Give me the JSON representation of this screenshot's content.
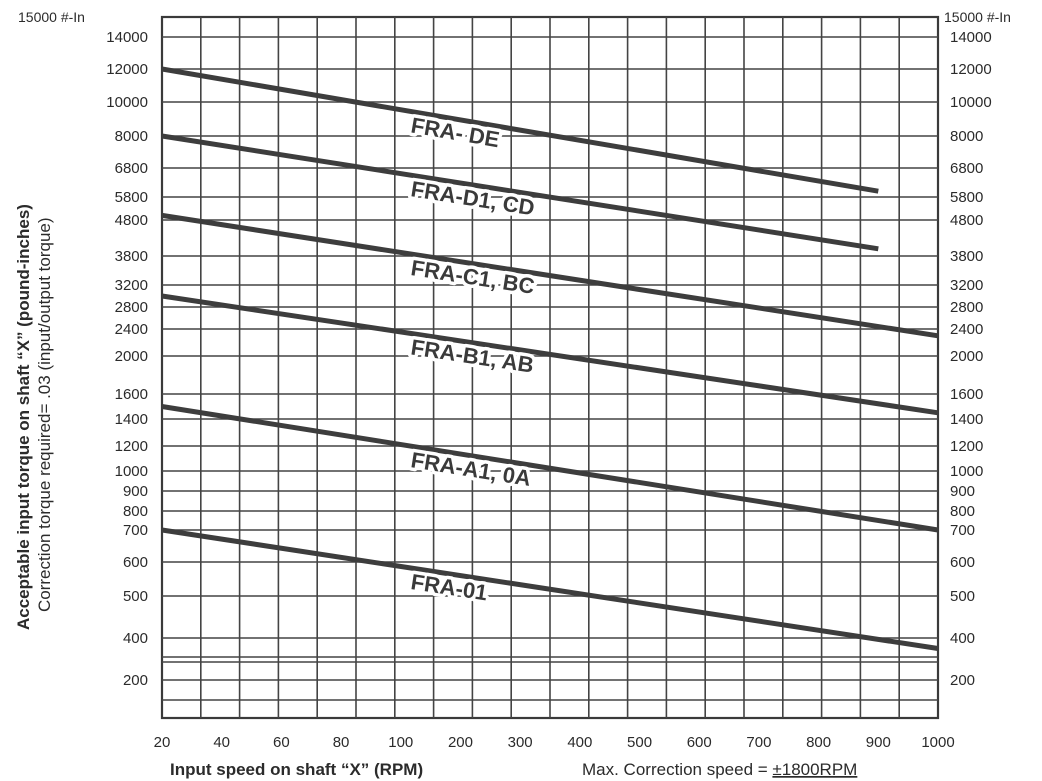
{
  "chart_data": {
    "type": "line",
    "xlabel": "Input speed on shaft “X”  (RPM)",
    "note": "Max. Correction speed = ",
    "note_value": "±1800RPM",
    "ylabel": "Acceptable input torque on shaft “X” (pound-inches)",
    "ylabel2": "Correction torque required= .03 (input/output torque)",
    "x_ticks": [
      "20",
      "40",
      "60",
      "80",
      "100",
      "200",
      "300",
      "400",
      "500",
      "600",
      "700",
      "800",
      "900",
      "1000"
    ],
    "y_ticks": [
      "14000",
      "12000",
      "10000",
      "8000",
      "6800",
      "5800",
      "4800",
      "3800",
      "3200",
      "2800",
      "2400",
      "2000",
      "1600",
      "1400",
      "1200",
      "1000",
      "900",
      "800",
      "700",
      "600",
      "500",
      "400",
      "200"
    ],
    "y_top_label": "15000 #-In",
    "y_top_label_right": "15000 #-In",
    "series": [
      {
        "name": "FRA- DE",
        "x": [
          20,
          900
        ],
        "y": [
          12000,
          6000
        ]
      },
      {
        "name": "FRA-D1, CD",
        "x": [
          20,
          900
        ],
        "y": [
          8000,
          4000
        ]
      },
      {
        "name": "FRA-C1, BC",
        "x": [
          20,
          1000
        ],
        "y": [
          5000,
          2300
        ]
      },
      {
        "name": "FRA-B1, AB",
        "x": [
          20,
          1000
        ],
        "y": [
          3000,
          1450
        ]
      },
      {
        "name": "FRA-A1, 0A",
        "x": [
          20,
          1000
        ],
        "y": [
          1500,
          700
        ]
      },
      {
        "name": "FRA-01",
        "x": [
          20,
          1000
        ],
        "y": [
          700,
          350
        ]
      }
    ],
    "grid": true
  }
}
